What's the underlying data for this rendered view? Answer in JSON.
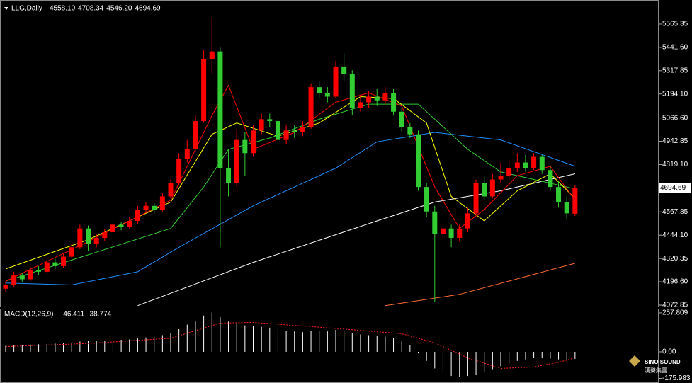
{
  "chart_data": [
    {
      "type": "candlestick",
      "title": "LLG,Daily",
      "header_values": [
        4558.1,
        4708.34,
        4546.2,
        4694.69
      ],
      "header_value_labels": [
        "4558.10",
        "4708.34",
        "4546.20",
        "4694.69"
      ],
      "open": [
        4160,
        4180,
        4230,
        4210,
        4260,
        4250,
        4300,
        4280,
        4330,
        4380,
        4480,
        4400,
        4430,
        4460,
        4500,
        4490,
        4520,
        4580,
        4600,
        4580,
        4650,
        4720,
        4850,
        4900,
        5050,
        5380,
        5420,
        4800,
        4720,
        4950,
        4880,
        5000,
        5060,
        5050,
        4950,
        5000,
        4990,
        5020,
        5230,
        5200,
        5180,
        5340,
        5300,
        5120,
        5150,
        5180,
        5160,
        5200,
        5100,
        5020,
        4980,
        4700,
        4570,
        4450,
        4480,
        4430,
        4480,
        4560,
        4720,
        4650,
        4740,
        4760,
        4800,
        4830,
        4800,
        4860,
        4790,
        4700,
        4620,
        4558.1
      ],
      "high": [
        4200,
        4250,
        4245,
        4275,
        4280,
        4315,
        4320,
        4345,
        4400,
        4500,
        4495,
        4450,
        4475,
        4520,
        4515,
        4540,
        4600,
        4620,
        4615,
        4670,
        4740,
        4880,
        4950,
        5080,
        5430,
        5600,
        5440,
        4900,
        5000,
        4990,
        5030,
        5090,
        5090,
        5070,
        5030,
        5030,
        5050,
        5250,
        5260,
        5230,
        5370,
        5410,
        5320,
        5190,
        5210,
        5220,
        5230,
        5220,
        5120,
        5040,
        5000,
        4720,
        4600,
        4510,
        4500,
        4500,
        4590,
        4740,
        4760,
        4770,
        4830,
        4850,
        4880,
        4870,
        4880,
        4870,
        4810,
        4730,
        4650,
        4708.34
      ],
      "low": [
        4140,
        4170,
        4195,
        4200,
        4235,
        4240,
        4265,
        4270,
        4320,
        4370,
        4360,
        4380,
        4415,
        4450,
        4470,
        4480,
        4505,
        4565,
        4560,
        4570,
        4640,
        4710,
        4830,
        4890,
        5040,
        5300,
        4380,
        4650,
        4700,
        4760,
        4860,
        4980,
        5020,
        4920,
        4930,
        4960,
        4970,
        5010,
        5170,
        5150,
        5170,
        5260,
        5080,
        5100,
        5120,
        5130,
        5140,
        5080,
        4990,
        4960,
        4680,
        4540,
        4090,
        4420,
        4380,
        4410,
        4460,
        4550,
        4630,
        4640,
        4720,
        4740,
        4780,
        4780,
        4790,
        4770,
        4680,
        4590,
        4530,
        4546.2
      ],
      "close": [
        4180,
        4230,
        4210,
        4260,
        4250,
        4300,
        4280,
        4330,
        4380,
        4480,
        4400,
        4430,
        4460,
        4500,
        4490,
        4520,
        4580,
        4600,
        4580,
        4650,
        4720,
        4850,
        4900,
        5050,
        5380,
        5420,
        4800,
        4720,
        4950,
        4880,
        5000,
        5060,
        5050,
        4950,
        5000,
        4990,
        5020,
        5230,
        5200,
        5180,
        5340,
        5300,
        5120,
        5150,
        5180,
        5160,
        5200,
        5100,
        5020,
        4980,
        4700,
        4570,
        4450,
        4480,
        4430,
        4480,
        4560,
        4720,
        4650,
        4740,
        4760,
        4800,
        4830,
        4800,
        4860,
        4790,
        4700,
        4620,
        4560,
        4694.69
      ],
      "up_color": "#ff0000",
      "down_color": "#32cd32",
      "lines": [
        {
          "color": "#1e90ff",
          "x": [
            0,
            8,
            16,
            21,
            30,
            40,
            45,
            52,
            60,
            69
          ],
          "values": [
            4190,
            4180,
            4250,
            4380,
            4600,
            4800,
            4940,
            4990,
            4950,
            4810
          ]
        },
        {
          "color": "#ffffff",
          "x": [
            16,
            30,
            45,
            52,
            60,
            69
          ],
          "values": [
            4070,
            4300,
            4520,
            4620,
            4680,
            4770
          ]
        },
        {
          "color": "#ff6a33",
          "x": [
            46,
            55,
            69
          ],
          "values": [
            4070,
            4130,
            4295
          ]
        },
        {
          "color": "#32cd32",
          "x": [
            0,
            10,
            20,
            24,
            27,
            32,
            38,
            44,
            50,
            56,
            60,
            64,
            69
          ],
          "values": [
            4200,
            4340,
            4480,
            4700,
            4900,
            4960,
            5060,
            5140,
            5140,
            4900,
            4780,
            4740,
            4690
          ]
        },
        {
          "color": "#ffff00",
          "x": [
            0,
            10,
            20,
            25,
            28,
            33,
            38,
            43,
            47,
            51,
            54,
            58,
            62,
            66,
            69
          ],
          "values": [
            4265,
            4420,
            4620,
            4980,
            5040,
            4970,
            5040,
            5180,
            5170,
            5040,
            4650,
            4520,
            4680,
            4770,
            4640
          ]
        },
        {
          "color": "#ff0000",
          "x": [
            0,
            10,
            20,
            25,
            27,
            30,
            35,
            40,
            44,
            48,
            52,
            55,
            58,
            62,
            66,
            69
          ],
          "values": [
            4200,
            4410,
            4630,
            5080,
            5240,
            4900,
            4990,
            5150,
            5200,
            5130,
            4700,
            4480,
            4580,
            4760,
            4810,
            4630
          ]
        }
      ],
      "ylim": [
        4069,
        5693
      ],
      "yticks": [
        {
          "value": 5565.35,
          "label": "5565.35"
        },
        {
          "value": 5441.6,
          "label": "5441.60"
        },
        {
          "value": 5317.85,
          "label": "5317.85"
        },
        {
          "value": 5194.1,
          "label": "5194.10"
        },
        {
          "value": 5066.6,
          "label": "5066.60"
        },
        {
          "value": 4942.85,
          "label": "4942.85"
        },
        {
          "value": 4819.1,
          "label": "4819.10"
        },
        {
          "value": 4567.85,
          "label": "4567.85"
        },
        {
          "value": 4444.1,
          "label": "4444.10"
        },
        {
          "value": 4320.35,
          "label": "4320.35"
        },
        {
          "value": 4196.6,
          "label": "4196.60"
        },
        {
          "value": 4072.85,
          "label": "4072.85"
        }
      ],
      "price_tag": 4694.69
    },
    {
      "type": "bar",
      "title": "MACD(12,26,9)",
      "header_values": [
        -46.411,
        -38.774
      ],
      "values": [
        40,
        45,
        45,
        48,
        50,
        52,
        55,
        58,
        60,
        68,
        72,
        72,
        75,
        78,
        80,
        82,
        88,
        95,
        100,
        110,
        125,
        150,
        180,
        200,
        240,
        260,
        230,
        200,
        190,
        175,
        170,
        165,
        160,
        150,
        140,
        135,
        130,
        140,
        140,
        135,
        145,
        140,
        125,
        115,
        110,
        105,
        100,
        90,
        70,
        45,
        -10,
        -60,
        -110,
        -140,
        -160,
        -165,
        -160,
        -150,
        -135,
        -115,
        -95,
        -75,
        -60,
        -50,
        -40,
        -40,
        -45,
        -50,
        -55,
        -46.411
      ],
      "color": "#ffffff",
      "signal": {
        "color": "#ff2020",
        "x": [
          0,
          10,
          20,
          26,
          30,
          40,
          48,
          52,
          56,
          60,
          64,
          67,
          69
        ],
        "values": [
          35,
          55,
          90,
          190,
          195,
          155,
          120,
          60,
          -40,
          -110,
          -100,
          -70,
          -38.774
        ]
      },
      "ylim": [
        -201.6,
        281
      ],
      "yticks": [
        257.809,
        {
          "value": 0,
          "label": "0.00"
        },
        -175.983
      ]
    }
  ],
  "logo": {
    "name": "SINO SOUND",
    "subtitle": "漢聲集團"
  }
}
